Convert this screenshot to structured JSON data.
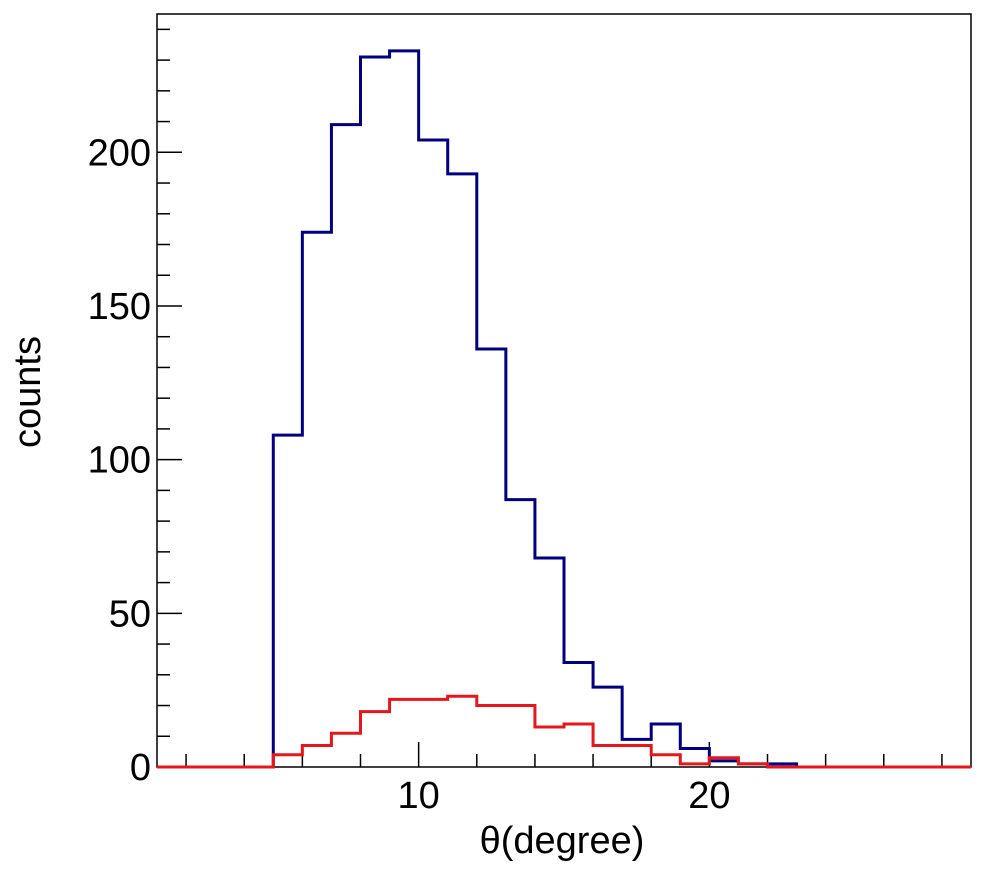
{
  "chart_data": {
    "type": "bar",
    "style": "step-histogram",
    "title": "",
    "xlabel": "θ(degree)",
    "ylabel": "counts",
    "xlim": [
      1,
      29
    ],
    "ylim": [
      0,
      245
    ],
    "bin_width": 1,
    "x_major_ticks": [
      10,
      20
    ],
    "x_minor_tick_step": 2,
    "y_major_ticks": [
      0,
      50,
      100,
      150,
      200
    ],
    "y_minor_tick_step": 10,
    "grid": false,
    "legend": null,
    "bin_edges": [
      1,
      2,
      3,
      4,
      5,
      6,
      7,
      8,
      9,
      10,
      11,
      12,
      13,
      14,
      15,
      16,
      17,
      18,
      19,
      20,
      21,
      22,
      23,
      24,
      25,
      26,
      27,
      28,
      29
    ],
    "series": [
      {
        "name": "blue",
        "color": "#000080",
        "values": [
          0,
          0,
          0,
          0,
          108,
          174,
          209,
          231,
          233,
          204,
          193,
          136,
          87,
          68,
          34,
          26,
          9,
          14,
          6,
          2,
          1,
          1,
          0,
          0,
          0,
          0,
          0,
          0
        ]
      },
      {
        "name": "red",
        "color": "#e8161a",
        "values": [
          0,
          0,
          0,
          0,
          4,
          7,
          11,
          18,
          22,
          22,
          23,
          20,
          20,
          13,
          14,
          7,
          7,
          4,
          1,
          3,
          1,
          0,
          0,
          0,
          0,
          0,
          0,
          0
        ]
      }
    ]
  },
  "labels": {
    "xlabel": "θ(degree)",
    "ylabel": "counts"
  }
}
